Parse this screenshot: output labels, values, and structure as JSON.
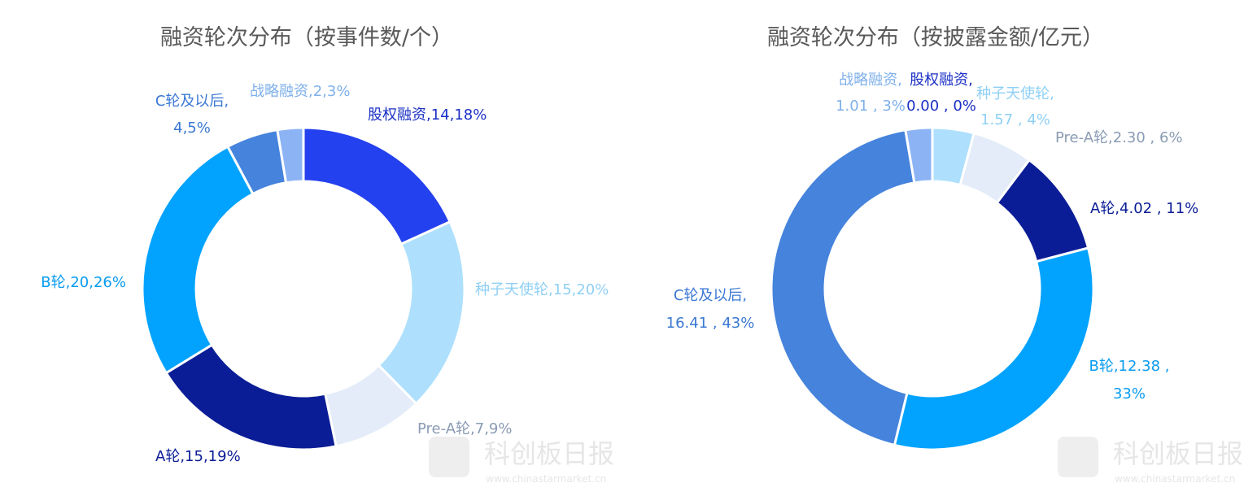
{
  "watermark": {
    "brand": "科创板日报",
    "url": "www.chinastarmarket.cn"
  },
  "chart_data": [
    {
      "type": "pie",
      "title": "融资轮次分布（按事件数/个）",
      "slices": [
        {
          "name": "股权融资",
          "value": 14,
          "percent": "18%",
          "label": "股权融资,14,18%",
          "color": "#2441ef",
          "label_color": "#1a2fc4"
        },
        {
          "name": "种子天使轮",
          "value": 15,
          "percent": "20%",
          "label": "种子天使轮,15,20%",
          "color": "#aee0fd",
          "label_color": "#8fd0f5"
        },
        {
          "name": "Pre-A轮",
          "value": 7,
          "percent": "9%",
          "label": "Pre-A轮,7,9%",
          "color": "#e3ecf8",
          "label_color": "#8a9bb3"
        },
        {
          "name": "A轮",
          "value": 15,
          "percent": "19%",
          "label": "A轮,15,19%",
          "color": "#0b1d96",
          "label_color": "#0b1d96"
        },
        {
          "name": "B轮",
          "value": 20,
          "percent": "26%",
          "label": "B轮,20,26%",
          "color": "#02a3fe",
          "label_color": "#0a9cf0"
        },
        {
          "name": "C轮及以后",
          "value": 4,
          "percent": "5%",
          "label": [
            "C轮及以后,",
            "4,5%"
          ],
          "color": "#4583dc",
          "label_color": "#3a78d4"
        },
        {
          "name": "战略融资",
          "value": 2,
          "percent": "3%",
          "label": "战略融资,2,3%",
          "color": "#8cb4f5",
          "label_color": "#7fb0ea"
        }
      ]
    },
    {
      "type": "pie",
      "title": "融资轮次分布（按披露金额/亿元）",
      "slices": [
        {
          "name": "股权融资",
          "value": 0.0,
          "percent": "0%",
          "label": [
            "股权融资,",
            "0.00 , 0%"
          ],
          "color": "#2441ef",
          "label_color": "#1a2fc4"
        },
        {
          "name": "种子天使轮",
          "value": 1.57,
          "percent": "4%",
          "label": [
            "种子天使轮,",
            "1.57 , 4%"
          ],
          "color": "#aee0fd",
          "label_color": "#8fd0f5"
        },
        {
          "name": "Pre-A轮",
          "value": 2.3,
          "percent": "6%",
          "label": "Pre-A轮,2.30 , 6%",
          "color": "#e3ecf8",
          "label_color": "#8a9bb3"
        },
        {
          "name": "A轮",
          "value": 4.02,
          "percent": "11%",
          "label": "A轮,4.02 , 11%",
          "color": "#0b1d96",
          "label_color": "#0b1d96"
        },
        {
          "name": "B轮",
          "value": 12.38,
          "percent": "33%",
          "label": [
            "B轮,12.38 ,",
            "33%"
          ],
          "color": "#02a3fe",
          "label_color": "#0a9cf0"
        },
        {
          "name": "C轮及以后",
          "value": 16.41,
          "percent": "43%",
          "label": [
            "C轮及以后,",
            "16.41 , 43%"
          ],
          "color": "#4583dc",
          "label_color": "#3a78d4"
        },
        {
          "name": "战略融资",
          "value": 1.01,
          "percent": "3%",
          "label": [
            "战略融资,",
            "1.01 , 3%"
          ],
          "color": "#8cb4f5",
          "label_color": "#7fb0ea"
        }
      ]
    }
  ]
}
